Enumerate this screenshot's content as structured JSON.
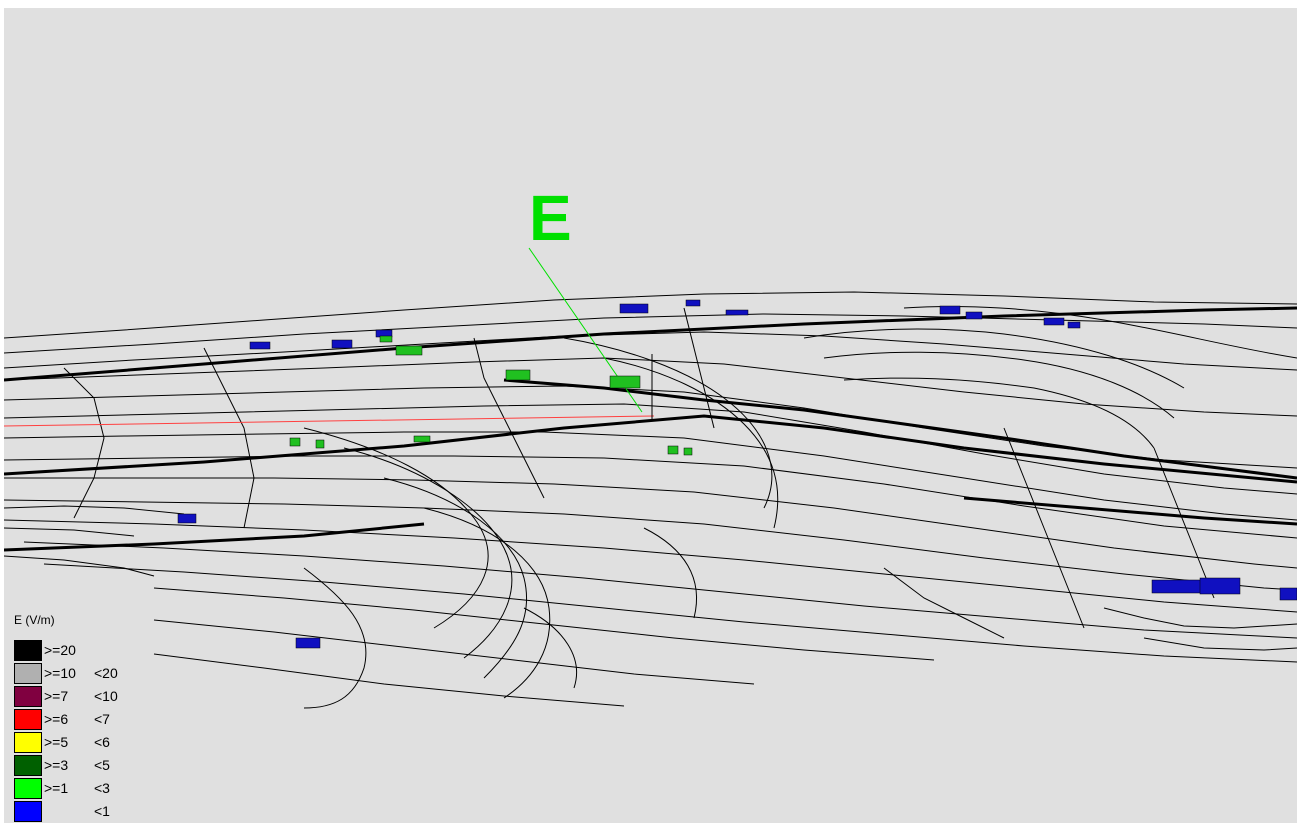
{
  "marker": {
    "label": "E",
    "color": "#00e000"
  },
  "legend": {
    "title": "E (V/m)",
    "items": [
      {
        "lo": ">=20",
        "hi": "",
        "color": "#000000"
      },
      {
        "lo": ">=10",
        "hi": "<20",
        "color": "#b0b0b0"
      },
      {
        "lo": ">=7",
        "hi": "<10",
        "color": "#800040"
      },
      {
        "lo": ">=6",
        "hi": "<7",
        "color": "#ff0000"
      },
      {
        "lo": ">=5",
        "hi": "<6",
        "color": "#ffff00"
      },
      {
        "lo": ">=3",
        "hi": "<5",
        "color": "#006000"
      },
      {
        "lo": ">=1",
        "hi": "<3",
        "color": "#00ff00"
      },
      {
        "lo": "",
        "hi": "<1",
        "color": "#0000ff"
      }
    ]
  },
  "colors": {
    "background": "#e0e0e0",
    "contour": "#000000",
    "axis": "#ff4040",
    "building_low": "#1010c0",
    "building_mid": "#20c020"
  }
}
